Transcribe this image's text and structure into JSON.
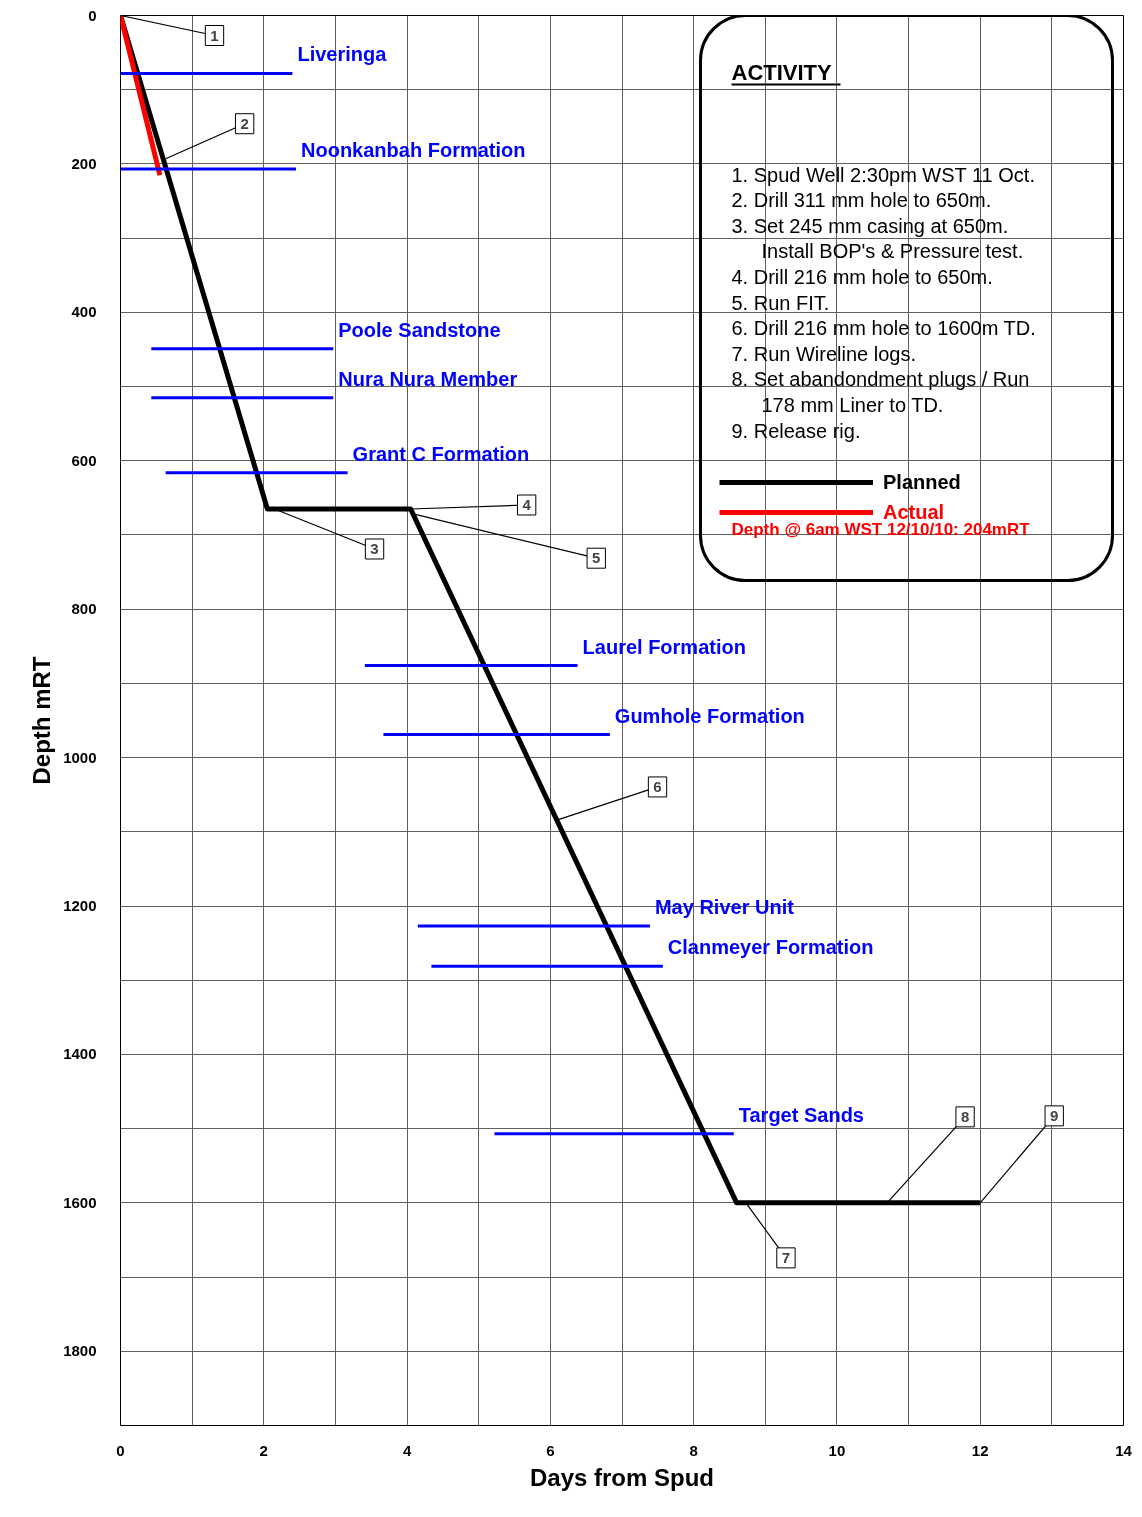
{
  "chart_data": {
    "type": "line",
    "xlabel": "Days from Spud",
    "ylabel": "Depth mRT",
    "xlim": [
      0,
      14
    ],
    "ylim": [
      1900,
      0
    ],
    "xticks": [
      0,
      {
        "value": 1,
        "label": null
      },
      2,
      {
        "value": 3,
        "label": null
      },
      4,
      {
        "value": 5,
        "label": null
      },
      6,
      {
        "value": 7,
        "label": null
      },
      8,
      {
        "value": 9,
        "label": null
      },
      10,
      {
        "value": 11,
        "label": null
      },
      12,
      {
        "value": 13,
        "label": null
      },
      14
    ],
    "yticks": [
      0,
      {
        "value": 100,
        "label": null
      },
      200,
      {
        "value": 300,
        "label": null
      },
      400,
      {
        "value": 500,
        "label": null
      },
      600,
      {
        "value": 700,
        "label": null
      },
      800,
      {
        "value": 900,
        "label": null
      },
      1000,
      {
        "value": 1100,
        "label": null
      },
      1200,
      {
        "value": 1300,
        "label": null
      },
      1400,
      {
        "value": 1500,
        "label": null
      },
      1600,
      {
        "value": 1700,
        "label": null
      },
      1800
    ],
    "grid": true,
    "legend": "top right",
    "series": [
      {
        "name": "Planned",
        "color": "#000000",
        "x": [
          0,
          2.05,
          4.05,
          8.6,
          12.0
        ],
        "values": [
          0,
          665,
          665,
          1600,
          1600
        ]
      },
      {
        "name": "Actual",
        "color": "#ff0000",
        "x": [
          0,
          0.55
        ],
        "values": [
          0,
          215
        ]
      },
      {
        "name": "Liveringa",
        "color": "#0000ff",
        "x": [
          0,
          2.4
        ],
        "values": [
          78,
          78
        ]
      },
      {
        "name": "Noonkanbah Formation",
        "color": "#0000ff",
        "x": [
          0,
          2.45
        ],
        "values": [
          207,
          207
        ]
      },
      {
        "name": "Poole Sandstone",
        "color": "#0000ff",
        "x": [
          0.43,
          2.97
        ],
        "values": [
          449,
          449
        ]
      },
      {
        "name": "Nura Nura Member",
        "color": "#0000ff",
        "x": [
          0.43,
          2.97
        ],
        "values": [
          515,
          515
        ]
      },
      {
        "name": "Grant C Formation",
        "color": "#0000ff",
        "x": [
          0.63,
          3.17
        ],
        "values": [
          616,
          616
        ]
      },
      {
        "name": "Laurel Formation",
        "color": "#0000ff",
        "x": [
          3.41,
          6.38
        ],
        "values": [
          876,
          876
        ]
      },
      {
        "name": "Gumhole Formation",
        "color": "#0000ff",
        "x": [
          3.67,
          6.83
        ],
        "values": [
          969,
          969
        ]
      },
      {
        "name": "May River Unit",
        "color": "#0000ff",
        "x": [
          4.15,
          7.39
        ],
        "values": [
          1227,
          1227
        ]
      },
      {
        "name": "Clanmeyer Formation",
        "color": "#0000ff",
        "x": [
          4.34,
          7.57
        ],
        "values": [
          1281,
          1281
        ]
      },
      {
        "name": "Target Sands",
        "color": "#0000ff",
        "x": [
          5.22,
          8.56
        ],
        "values": [
          1507,
          1507
        ]
      }
    ],
    "annotations": [
      {
        "text": "1",
        "x": 0,
        "y": 0
      },
      {
        "text": "2",
        "x": 0.63,
        "y": 193
      },
      {
        "text": "3",
        "x": 2.15,
        "y": 665
      },
      {
        "text": "4",
        "x": 4.05,
        "y": 665
      },
      {
        "text": "5",
        "x": 4.1,
        "y": 672
      },
      {
        "text": "6",
        "x": 6.1,
        "y": 1084
      },
      {
        "text": "7",
        "x": 8.73,
        "y": 1600
      },
      {
        "text": "8",
        "x": 10.7,
        "y": 1600
      },
      {
        "text": "9",
        "x": 12.0,
        "y": 1600
      },
      "ACTIVITY",
      "1.  Spud Well 2:30pm WST 11 Oct.",
      "2.  Drill 311 mm hole to 650m.",
      "3.  Set 245 mm casing at 650m.\n     Install BOP's & Pressure test.",
      "4.  Drill 216 mm hole to 650m.",
      "5.  Run FIT.",
      "6.  Drill 216 mm hole to 1600m TD.",
      "7.  Run Wireline logs.",
      "8.  Set abandondment plugs / Run\n     178 mm Liner to TD.",
      "9.  Release rig.",
      "Depth @ 6am WST 12/10/10: 204mRT"
    ]
  }
}
